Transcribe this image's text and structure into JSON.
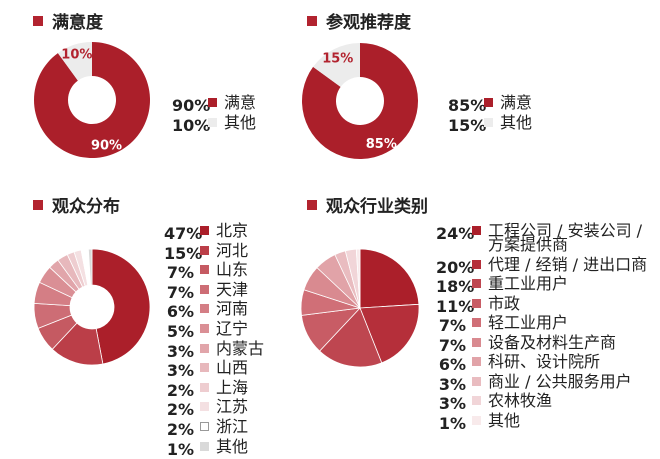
{
  "accent_color": "#b2232f",
  "chart_data": [
    {
      "type": "pie",
      "title": "满意度",
      "categories": [
        "满意",
        "其他"
      ],
      "values": [
        90,
        10
      ],
      "value_labels": [
        "90%",
        "10%"
      ],
      "colors": [
        "#ab1f2a",
        "#ececec"
      ],
      "legend": "right"
    },
    {
      "type": "pie",
      "title": "参观推荐度",
      "categories": [
        "满意",
        "其他"
      ],
      "values": [
        85,
        15
      ],
      "value_labels": [
        "85%",
        "15%"
      ],
      "colors": [
        "#ab1f2a",
        "#ececec"
      ],
      "legend": "right"
    },
    {
      "type": "pie",
      "title": "观众分布",
      "categories": [
        "北京",
        "河北",
        "山东",
        "天津",
        "河南",
        "辽宁",
        "内蒙古",
        "山西",
        "上海",
        "江苏",
        "浙江",
        "其他"
      ],
      "values": [
        47,
        15,
        7,
        7,
        6,
        5,
        3,
        3,
        2,
        2,
        2,
        1
      ],
      "value_labels": [
        "47%",
        "15%",
        "7%",
        "7%",
        "6%",
        "5%",
        "3%",
        "3%",
        "2%",
        "2%",
        "2%",
        "1%"
      ],
      "colors": [
        "#ab1f2a",
        "#bb3e48",
        "#c55a62",
        "#cd6d75",
        "#d47e85",
        "#da8f95",
        "#e1a5aa",
        "#e7b8bc",
        "#eecdd0",
        "#f4e0e2",
        "#ffffff",
        "#d9d9d9"
      ],
      "legend": "right"
    },
    {
      "type": "pie",
      "title": "观众行业类别",
      "categories": [
        "工程公司 / 安装公司 / 方案提供商",
        "代理 / 经销 / 进出口商",
        "重工业用户",
        "市政",
        "轻工业用户",
        "设备及材料生产商",
        "科研、设计院所",
        "商业 / 公共服务用户",
        "农林牧渔",
        "其他"
      ],
      "label_lines": [
        [
          "工程公司 / 安装公司 /",
          "方案提供商"
        ],
        [
          "代理 / 经销 / 进出口商"
        ],
        [
          "重工业用户"
        ],
        [
          "市政"
        ],
        [
          "轻工业用户"
        ],
        [
          "设备及材料生产商"
        ],
        [
          "科研、设计院所"
        ],
        [
          "商业 / 公共服务用户"
        ],
        [
          "农林牧渔"
        ],
        [
          "其他"
        ]
      ],
      "values": [
        24,
        20,
        18,
        11,
        7,
        7,
        6,
        3,
        3,
        1
      ],
      "value_labels": [
        "24%",
        "20%",
        "18%",
        "11%",
        "7%",
        "7%",
        "6%",
        "3%",
        "3%",
        "1%"
      ],
      "colors": [
        "#ab1f2a",
        "#b52f3a",
        "#be4650",
        "#c85c65",
        "#d06f77",
        "#d98a90",
        "#e1a3a8",
        "#e9bcc0",
        "#f1d5d8",
        "#f8eaeb"
      ],
      "legend": "right"
    }
  ]
}
